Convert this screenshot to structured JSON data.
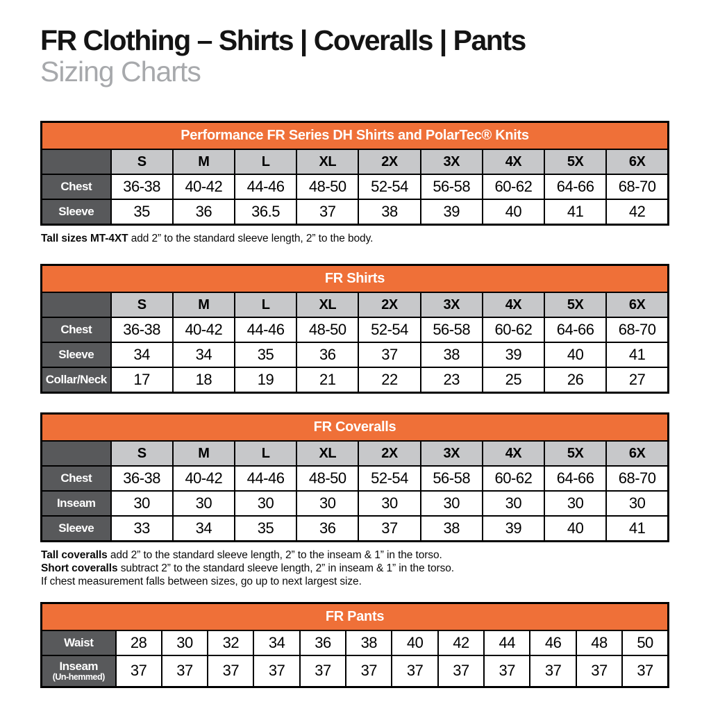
{
  "page": {
    "title": "FR Clothing – Shirts | Coveralls | Pants",
    "subtitle": "Sizing Charts"
  },
  "colors": {
    "accent_orange": "#EF7038",
    "header_dark_gray": "#58595B",
    "header_light_gray": "#C7C8CA"
  },
  "tables": [
    {
      "title": "Performance FR Series DH Shirts and PolarTec® Knits",
      "columns": [
        "S",
        "M",
        "L",
        "XL",
        "2X",
        "3X",
        "4X",
        "5X",
        "6X"
      ],
      "rows": [
        {
          "label": "Chest",
          "values": [
            "36-38",
            "40-42",
            "44-46",
            "48-50",
            "52-54",
            "56-58",
            "60-62",
            "64-66",
            "68-70"
          ]
        },
        {
          "label": "Sleeve",
          "values": [
            "35",
            "36",
            "36.5",
            "37",
            "38",
            "39",
            "40",
            "41",
            "42"
          ]
        }
      ],
      "notes": [
        {
          "bold": "Tall sizes MT-4XT",
          "text": " add 2” to the standard sleeve length, 2” to the body."
        }
      ]
    },
    {
      "title": "FR Shirts",
      "columns": [
        "S",
        "M",
        "L",
        "XL",
        "2X",
        "3X",
        "4X",
        "5X",
        "6X"
      ],
      "rows": [
        {
          "label": "Chest",
          "values": [
            "36-38",
            "40-42",
            "44-46",
            "48-50",
            "52-54",
            "56-58",
            "60-62",
            "64-66",
            "68-70"
          ]
        },
        {
          "label": "Sleeve",
          "values": [
            "34",
            "34",
            "35",
            "36",
            "37",
            "38",
            "39",
            "40",
            "41"
          ]
        },
        {
          "label": "Collar/Neck",
          "values": [
            "17",
            "18",
            "19",
            "21",
            "22",
            "23",
            "25",
            "26",
            "27"
          ]
        }
      ],
      "notes": []
    },
    {
      "title": "FR Coveralls",
      "columns": [
        "S",
        "M",
        "L",
        "XL",
        "2X",
        "3X",
        "4X",
        "5X",
        "6X"
      ],
      "rows": [
        {
          "label": "Chest",
          "values": [
            "36-38",
            "40-42",
            "44-46",
            "48-50",
            "52-54",
            "56-58",
            "60-62",
            "64-66",
            "68-70"
          ]
        },
        {
          "label": "Inseam",
          "values": [
            "30",
            "30",
            "30",
            "30",
            "30",
            "30",
            "30",
            "30",
            "30"
          ]
        },
        {
          "label": "Sleeve",
          "values": [
            "33",
            "34",
            "35",
            "36",
            "37",
            "38",
            "39",
            "40",
            "41"
          ]
        }
      ],
      "notes": [
        {
          "bold": "Tall coveralls",
          "text": " add 2” to the standard sleeve length, 2” to the inseam & 1” in the torso."
        },
        {
          "bold": "Short coveralls",
          "text": " subtract 2” to the standard sleeve length, 2” in inseam & 1” in the torso."
        },
        {
          "bold": "",
          "text": "If chest measurement falls between sizes, go up to next largest size."
        }
      ]
    },
    {
      "title": "FR Pants",
      "columns": null,
      "rows": [
        {
          "label": "Waist",
          "values": [
            "28",
            "30",
            "32",
            "34",
            "36",
            "38",
            "40",
            "42",
            "44",
            "46",
            "48",
            "50"
          ]
        },
        {
          "label": "Inseam",
          "sublabel": "(Un-hemmed)",
          "values": [
            "37",
            "37",
            "37",
            "37",
            "37",
            "37",
            "37",
            "37",
            "37",
            "37",
            "37",
            "37"
          ]
        }
      ],
      "notes": []
    }
  ]
}
